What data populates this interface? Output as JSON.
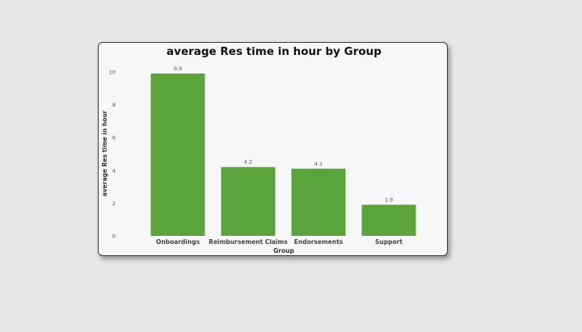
{
  "chart_data": {
    "type": "bar",
    "title": "average Res time in hour by Group",
    "xlabel": "Group",
    "ylabel": "average Res time in hour",
    "categories": [
      "Onboardings",
      "Reimbursement Claims",
      "Endorsements",
      "Support"
    ],
    "values": [
      9.9,
      4.2,
      4.1,
      1.9
    ],
    "data_labels": [
      "9.9",
      "4.2",
      "4.1",
      "1.9"
    ],
    "ylim": [
      0,
      10
    ],
    "yticks": [
      0,
      2,
      4,
      6,
      8,
      10
    ],
    "grid": false,
    "legend": "none",
    "bar_color": "#5ba33b"
  }
}
